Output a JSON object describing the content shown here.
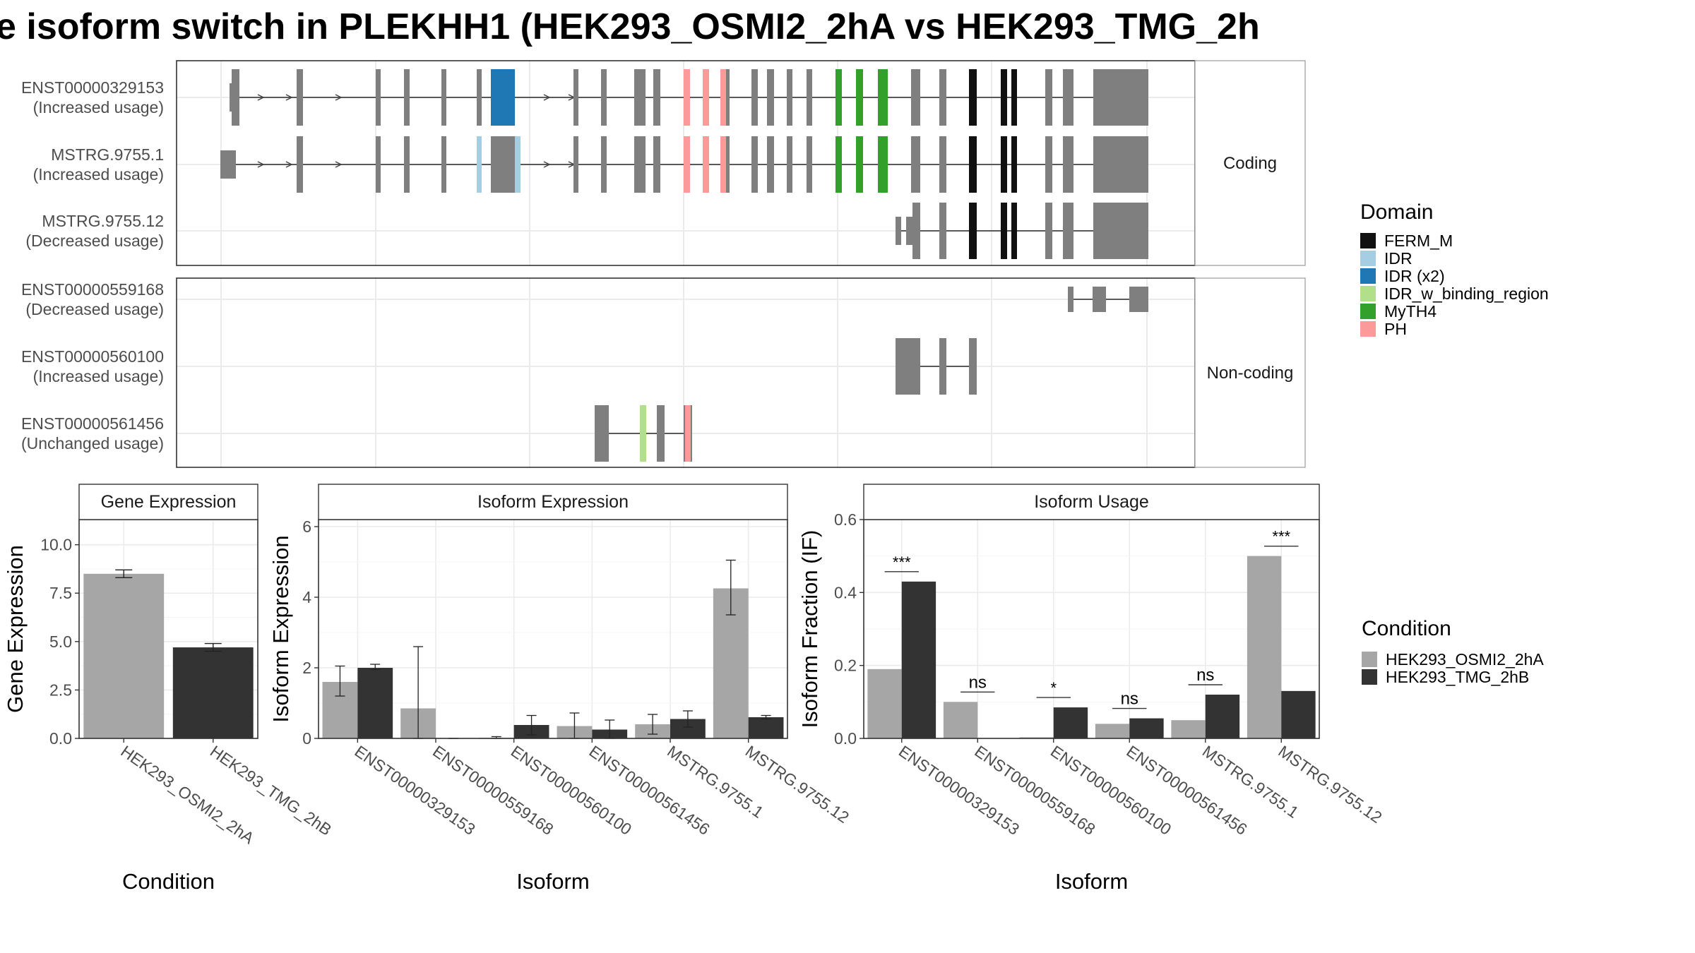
{
  "title": "e isoform switch in PLEKHH1 (HEK293_OSMI2_2hA vs HEK293_TMG_2h",
  "colors": {
    "condition_a": "#a6a6a6",
    "condition_b": "#333333",
    "exon": "#7f7f7f",
    "panel_border": "#333333",
    "grid": "#ebebeb",
    "strip_bg": "#ffffff"
  },
  "structure": {
    "facets": [
      "Coding",
      "Non-coding"
    ],
    "isoforms": [
      {
        "id": "ENST00000329153",
        "usage": "(Increased usage)",
        "facet": "Coding"
      },
      {
        "id": "MSTRG.9755.1",
        "usage": "(Increased usage)",
        "facet": "Coding"
      },
      {
        "id": "MSTRG.9755.12",
        "usage": "(Decreased usage)",
        "facet": "Coding"
      },
      {
        "id": "ENST00000559168",
        "usage": "(Decreased usage)",
        "facet": "Non-coding"
      },
      {
        "id": "ENST00000560100",
        "usage": "(Increased usage)",
        "facet": "Non-coding"
      },
      {
        "id": "ENST00000561456",
        "usage": "(Unchanged usage)",
        "facet": "Non-coding"
      }
    ],
    "domain_legend": {
      "title": "Domain",
      "items": [
        {
          "label": "FERM_M",
          "color": "#111111"
        },
        {
          "label": "IDR",
          "color": "#a6cee3"
        },
        {
          "label": "IDR (x2)",
          "color": "#1f78b4"
        },
        {
          "label": "IDR_w_binding_region",
          "color": "#b2df8a"
        },
        {
          "label": "MyTH4",
          "color": "#33a02c"
        },
        {
          "label": "PH",
          "color": "#fb9a99"
        }
      ]
    }
  },
  "chart_data": [
    {
      "type": "bar",
      "title": "Gene Expression",
      "xlabel": "Condition",
      "ylabel": "Gene Expression",
      "ylim": [
        0,
        11.3
      ],
      "yticks": [
        "0.0",
        "2.5",
        "5.0",
        "7.5",
        "10.0"
      ],
      "categories": [
        "HEK293_OSMI2_2hA",
        "HEK293_TMG_2hB"
      ],
      "values": [
        8.5,
        4.7
      ],
      "errors": [
        [
          8.3,
          8.7
        ],
        [
          4.5,
          4.9
        ]
      ]
    },
    {
      "type": "bar",
      "title": "Isoform Expression",
      "xlabel": "Isoform",
      "ylabel": "Isoform Expression",
      "ylim": [
        0,
        6.2
      ],
      "yticks": [
        "0",
        "2",
        "4",
        "6"
      ],
      "categories": [
        "ENST00000329153",
        "ENST00000559168",
        "ENST00000560100",
        "ENST00000561456",
        "MSTRG.9755.1",
        "MSTRG.9755.12"
      ],
      "series": [
        {
          "name": "HEK293_OSMI2_2hA",
          "values": [
            1.6,
            0.85,
            0.02,
            0.35,
            0.4,
            4.25
          ],
          "errors": [
            [
              1.2,
              2.05
            ],
            [
              0.0,
              2.6
            ],
            [
              0.0,
              0.05
            ],
            [
              0.0,
              0.72
            ],
            [
              0.12,
              0.68
            ],
            [
              3.5,
              5.05
            ]
          ]
        },
        {
          "name": "HEK293_TMG_2hB",
          "values": [
            2.0,
            0.0,
            0.38,
            0.25,
            0.55,
            0.6
          ],
          "errors": [
            [
              1.95,
              2.1
            ],
            [
              0.0,
              0.0
            ],
            [
              0.1,
              0.65
            ],
            [
              0.0,
              0.52
            ],
            [
              0.32,
              0.78
            ],
            [
              0.55,
              0.65
            ]
          ]
        }
      ]
    },
    {
      "type": "bar",
      "title": "Isoform Usage",
      "xlabel": "Isoform",
      "ylabel": "Isoform Fraction (IF)",
      "ylim": [
        0,
        0.6
      ],
      "yticks": [
        "0.0",
        "0.2",
        "0.4",
        "0.6"
      ],
      "categories": [
        "ENST00000329153",
        "ENST00000559168",
        "ENST00000560100",
        "ENST00000561456",
        "MSTRG.9755.1",
        "MSTRG.9755.12"
      ],
      "series": [
        {
          "name": "HEK293_OSMI2_2hA",
          "values": [
            0.19,
            0.1,
            0.003,
            0.04,
            0.05,
            0.5
          ]
        },
        {
          "name": "HEK293_TMG_2hB",
          "values": [
            0.43,
            0.0,
            0.085,
            0.055,
            0.12,
            0.13
          ]
        }
      ],
      "significance": [
        "***",
        "ns",
        "*",
        "ns",
        "ns",
        "***"
      ]
    }
  ],
  "condition_legend": {
    "title": "Condition",
    "items": [
      {
        "label": "HEK293_OSMI2_2hA",
        "color": "#a6a6a6"
      },
      {
        "label": "HEK293_TMG_2hB",
        "color": "#333333"
      }
    ]
  }
}
